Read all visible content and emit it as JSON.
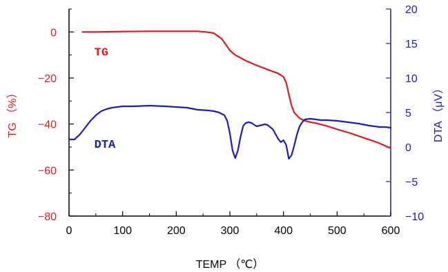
{
  "chart_data": {
    "type": "line",
    "title": "",
    "xlabel": "TEMP （℃）",
    "ylabel_left": "TG （%）",
    "ylabel_right": "DTA （μV）",
    "xlim": [
      0,
      600
    ],
    "ylim_left": [
      -80,
      10
    ],
    "ylim_right": [
      -10,
      20
    ],
    "x_ticks": [
      "0",
      "100",
      "200",
      "300",
      "400",
      "500",
      "600"
    ],
    "y_left_ticks": [
      "0",
      "−20",
      "−40",
      "−60",
      "−80"
    ],
    "y_right_ticks": [
      "20",
      "15",
      "10",
      "5",
      "0",
      "−5",
      "−10"
    ],
    "grid": false,
    "colors": {
      "tg": "#e8161b",
      "dta": "#1a1ac8"
    },
    "series": [
      {
        "name": "TG",
        "axis": "left",
        "x": [
          25,
          50,
          100,
          150,
          200,
          240,
          255,
          270,
          285,
          300,
          310,
          330,
          350,
          370,
          390,
          400,
          405,
          410,
          415,
          420,
          430,
          440,
          450,
          460,
          480,
          500,
          525,
          550,
          575,
          600
        ],
        "y": [
          0,
          0,
          0.2,
          0.3,
          0.3,
          0.3,
          0,
          -0.5,
          -3,
          -8,
          -10,
          -12.5,
          -14.5,
          -16.3,
          -18,
          -19.5,
          -22,
          -27,
          -32,
          -35,
          -37.5,
          -38.6,
          -39.2,
          -39.6,
          -40.8,
          -42.3,
          -44,
          -46,
          -48,
          -50.5
        ]
      },
      {
        "name": "DTA",
        "axis": "right",
        "x": [
          0,
          10,
          20,
          30,
          40,
          50,
          60,
          70,
          80,
          90,
          100,
          120,
          150,
          180,
          200,
          220,
          240,
          260,
          270,
          280,
          290,
          295,
          300,
          305,
          310,
          315,
          320,
          325,
          330,
          335,
          340,
          350,
          360,
          365,
          370,
          380,
          390,
          395,
          400,
          405,
          410,
          415,
          420,
          425,
          430,
          435,
          440,
          450,
          460,
          470,
          480,
          500,
          520,
          540,
          560,
          580,
          590,
          600
        ],
        "y": [
          1.1,
          1.1,
          1.8,
          2.8,
          3.8,
          4.6,
          5.2,
          5.5,
          5.7,
          5.8,
          5.9,
          5.9,
          6.0,
          5.9,
          5.8,
          5.7,
          5.4,
          5.3,
          5.2,
          5.0,
          4.6,
          3.8,
          2.0,
          -0.5,
          -1.6,
          -0.5,
          1.5,
          3.1,
          3.5,
          3.6,
          3.5,
          3.0,
          3.2,
          3.3,
          3.2,
          2.6,
          1.2,
          0.7,
          1.0,
          0.3,
          -1.7,
          -1.2,
          0.2,
          1.8,
          3.0,
          3.6,
          4.0,
          4.1,
          4.0,
          3.9,
          3.9,
          3.8,
          3.6,
          3.4,
          3.1,
          2.9,
          2.9,
          2.8
        ]
      }
    ],
    "annotations": [
      {
        "text": "TG",
        "x": 15,
        "y_left": -8.5,
        "series": "TG"
      },
      {
        "text": "DTA",
        "x": 15,
        "y_left": -48.5,
        "series": "DTA"
      }
    ]
  }
}
